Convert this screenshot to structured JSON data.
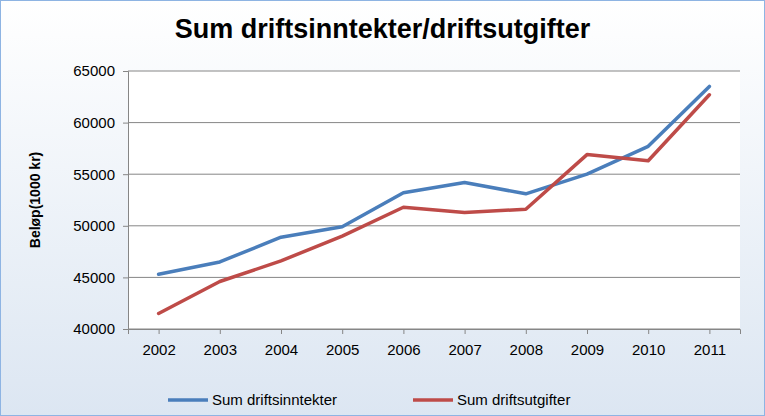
{
  "chart_data": {
    "type": "line",
    "title": "Sum driftsinntekter/driftsutgifter",
    "y_label": "Beløp(1000 kr)",
    "categories": [
      "2002",
      "2003",
      "2004",
      "2005",
      "2006",
      "2007",
      "2008",
      "2009",
      "2010",
      "2011"
    ],
    "series": [
      {
        "name": "Sum driftsinntekter",
        "color": "#4a7ebb",
        "values": [
          45300,
          46500,
          48900,
          49900,
          53200,
          54200,
          53100,
          55000,
          57700,
          63500
        ]
      },
      {
        "name": "Sum driftsutgifter",
        "color": "#be4b48",
        "values": [
          41500,
          44600,
          46600,
          49000,
          51800,
          51300,
          51600,
          56900,
          56300,
          62700
        ]
      }
    ],
    "ylim": [
      40000,
      65000
    ],
    "yticks": [
      40000,
      45000,
      50000,
      55000,
      60000,
      65000
    ],
    "grid": true,
    "legend": "bottom"
  }
}
